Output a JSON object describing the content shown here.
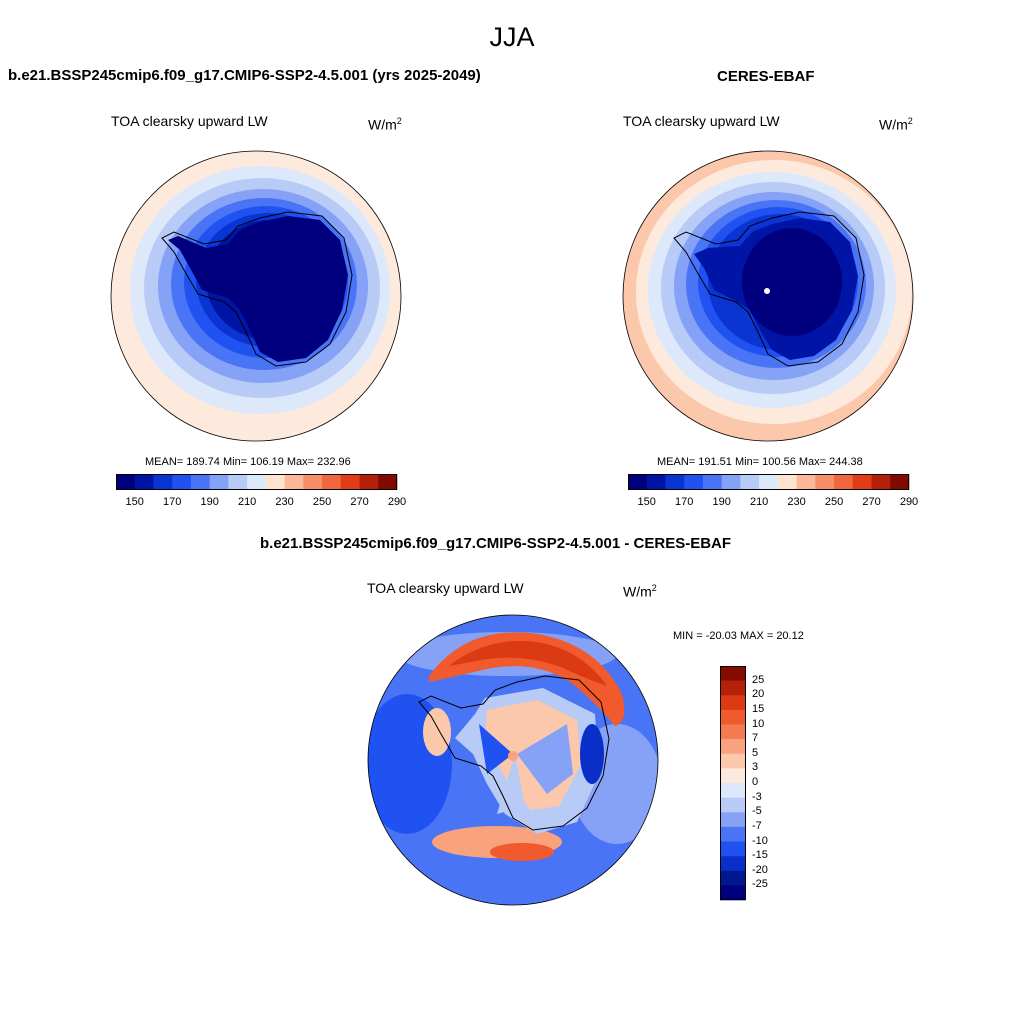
{
  "season": "JJA",
  "panels": [
    {
      "title": "b.e21.BSSP245cmip6.f09_g17.CMIP6-SSP2-4.5.001 (yrs 2025-2049)",
      "variable": "TOA clearsky upward LW",
      "units_base": "W/m",
      "units_exp": "2",
      "stats": "MEAN= 189.74  Min= 106.19  Max= 232.96",
      "levels": [
        "150",
        "170",
        "190",
        "210",
        "230",
        "250",
        "270",
        "290"
      ]
    },
    {
      "title": "CERES-EBAF",
      "variable": "TOA clearsky upward LW",
      "units_base": "W/m",
      "units_exp": "2",
      "stats": "MEAN= 191.51  Min= 100.56  Max= 244.38",
      "levels": [
        "150",
        "170",
        "190",
        "210",
        "230",
        "250",
        "270",
        "290"
      ]
    },
    {
      "title": "b.e21.BSSP245cmip6.f09_g17.CMIP6-SSP2-4.5.001 - CERES-EBAF",
      "variable": "TOA clearsky upward LW",
      "units_base": "W/m",
      "units_exp": "2",
      "stats": "MIN = -20.03 MAX =  20.12",
      "levels": [
        "25",
        "20",
        "15",
        "10",
        "7",
        "5",
        "3",
        "0",
        "-3",
        "-5",
        "-7",
        "-10",
        "-15",
        "-20",
        "-25"
      ]
    }
  ],
  "colors": {
    "abs_scale": [
      "#00007f",
      "#0014a6",
      "#0a35d2",
      "#1f52f0",
      "#4a74f6",
      "#86a2f6",
      "#b8cbf6",
      "#dde8fb",
      "#fde3d0",
      "#fbb79a",
      "#f78e68",
      "#f0663e",
      "#e03d17",
      "#b51e08",
      "#800a00"
    ],
    "diff_scale": [
      "#850a00",
      "#b52008",
      "#db3a14",
      "#f05a2c",
      "#f57c52",
      "#f9a37e",
      "#fbc8ab",
      "#fdeadd",
      "#dde8fb",
      "#b8cbf6",
      "#86a2f6",
      "#4a74f6",
      "#1f52f0",
      "#0a2fc9",
      "#00188f",
      "#00007f"
    ]
  }
}
